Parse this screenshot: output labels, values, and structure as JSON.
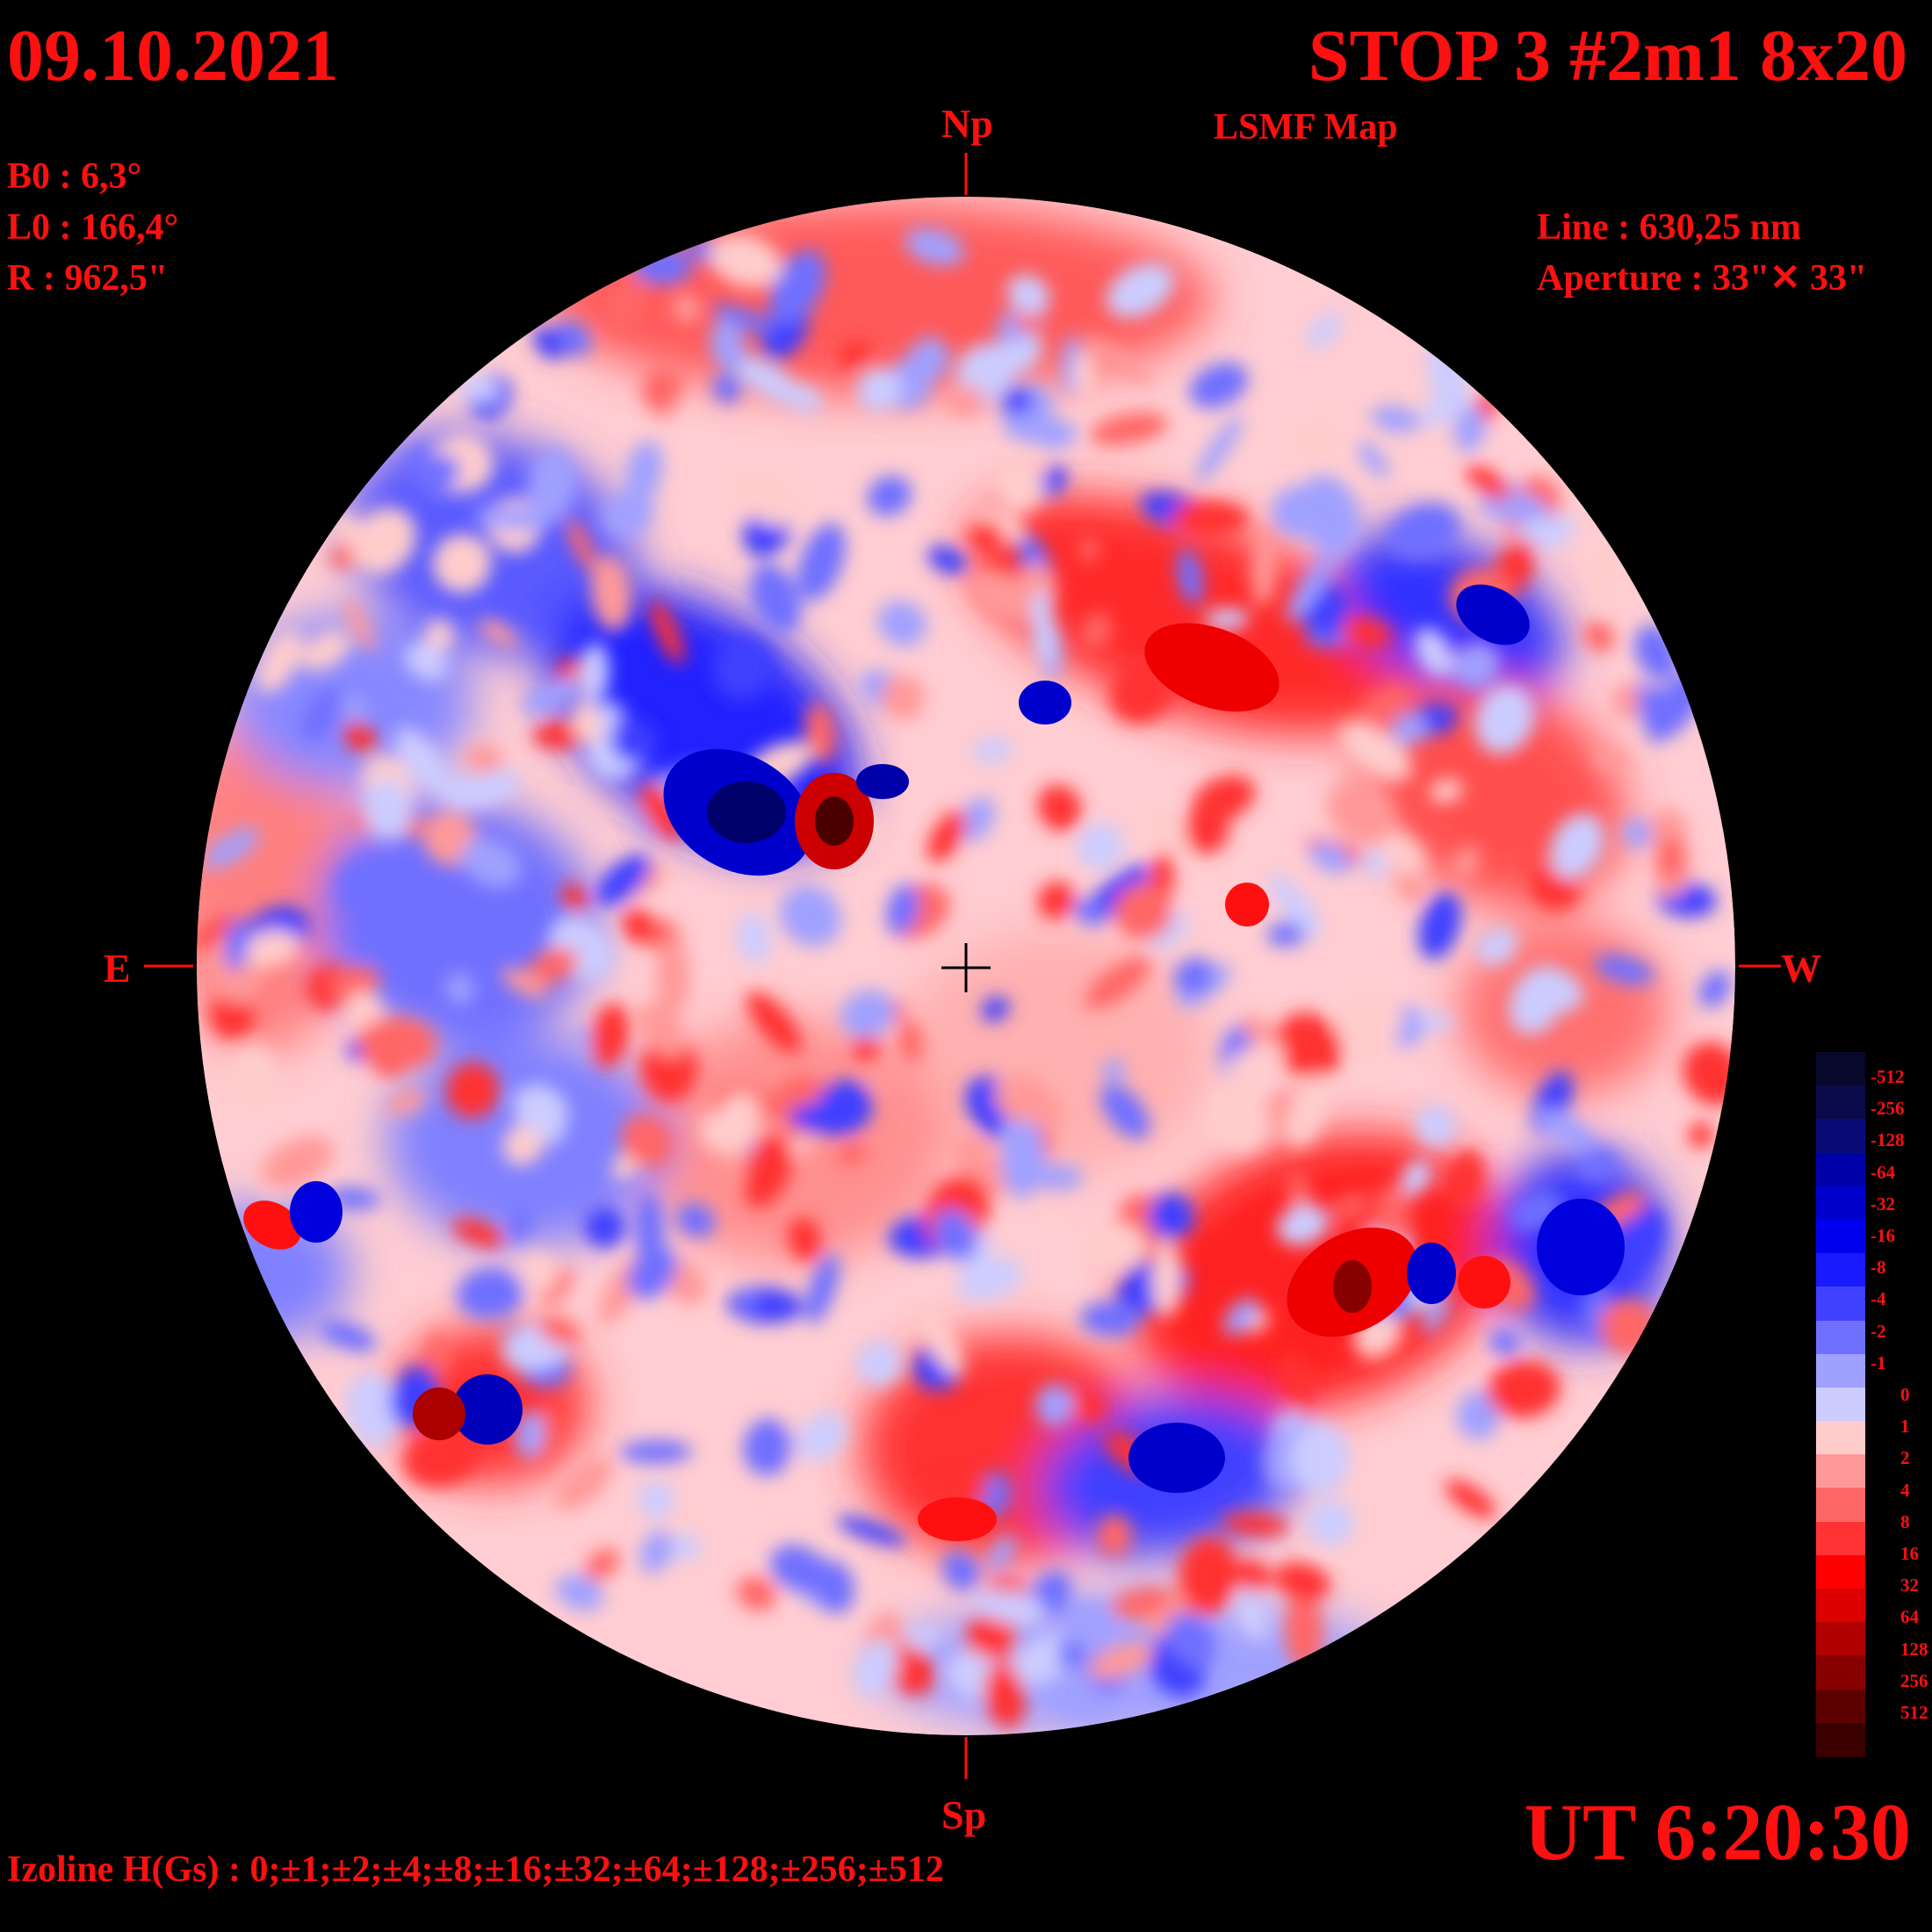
{
  "header": {
    "date": "09.10.2021",
    "title": "STOP 3 #2m1 8x20",
    "map_type": "LSMF  Map"
  },
  "parameters": {
    "b0": "B0 : 6,3°",
    "l0": "L0 : 166,4°",
    "r": "R  : 962,5\"",
    "line": "Line :  630,25 nm",
    "aperture": "Aperture : 33\"✕ 33\""
  },
  "orientation": {
    "north": "Np",
    "south": "Sp",
    "east": "E",
    "west": "W"
  },
  "footer": {
    "time": "UT 6:20:30",
    "isolines": "Izoline H(Gs) : 0;±1;±2;±4;±8;±16;±32;±64;±128;±256;±512"
  },
  "color_scale": {
    "labels": [
      "-512",
      "-256",
      "-128",
      "-64",
      "-32",
      "-16",
      "-8",
      "-4",
      "-2",
      "-1",
      "0",
      "1",
      "2",
      "4",
      "8",
      "16",
      "32",
      "64",
      "128",
      "256",
      "512"
    ],
    "colors": [
      "#08082a",
      "#0a0a4a",
      "#0b0b78",
      "#0000a8",
      "#0000cc",
      "#0000ee",
      "#1a1aff",
      "#4040ff",
      "#7070ff",
      "#a0a0ff",
      "#ccccff",
      "#ffcccc",
      "#ff9999",
      "#ff6666",
      "#ff3333",
      "#ff0000",
      "#dd0000",
      "#b00000",
      "#880000",
      "#5e0000",
      "#3a0000"
    ]
  },
  "colors": {
    "text": "#ff1010",
    "background": "#000000",
    "contour": "#ffffff"
  }
}
